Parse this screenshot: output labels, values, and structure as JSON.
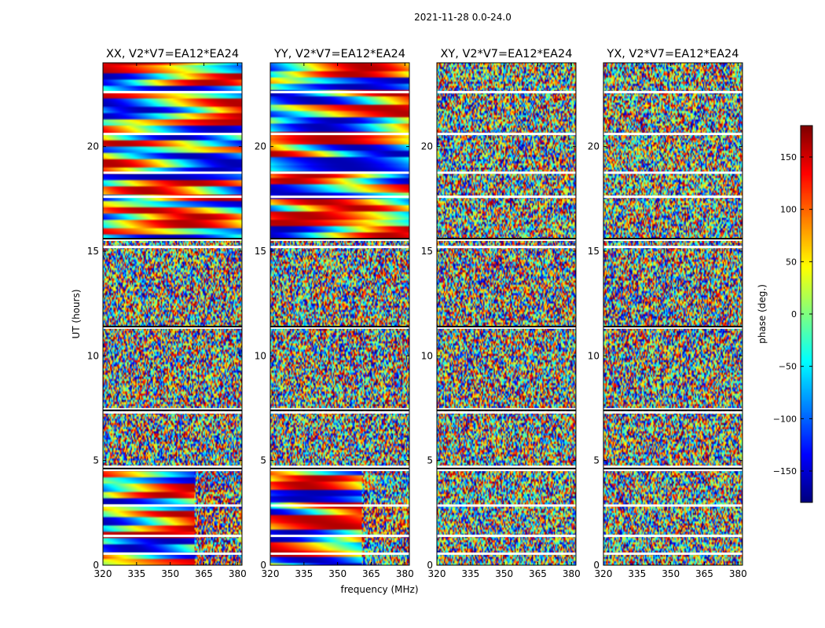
{
  "chart_data": {
    "type": "heatmap",
    "title": "2021-11-28 0.0-24.0",
    "xlabel": "frequency (MHz)",
    "ylabel": "UT (hours)",
    "xlim": [
      320,
      382
    ],
    "ylim": [
      0,
      24
    ],
    "x_ticks": [
      320,
      335,
      350,
      365,
      380
    ],
    "x_tick_labels": [
      "320",
      "335",
      "350",
      "365",
      "380"
    ],
    "y_ticks": [
      0,
      5,
      10,
      15,
      20
    ],
    "y_tick_labels": [
      "0",
      "5",
      "10",
      "15",
      "20"
    ],
    "colormap": "jet",
    "colorbar": {
      "label": "phase (deg.)",
      "range": [
        -180,
        180
      ],
      "ticks": [
        150,
        100,
        50,
        0,
        -50,
        -100,
        -150
      ],
      "tick_labels": [
        "150",
        "100",
        "50",
        "0",
        "−50",
        "−100",
        "−150"
      ]
    },
    "panels": [
      {
        "title": "XX, V2*V7=EA12*EA24",
        "pol": "XX"
      },
      {
        "title": "YY, V2*V7=EA12*EA24",
        "pol": "YY"
      },
      {
        "title": "XY, V2*V7=EA12*EA24",
        "pol": "XY"
      },
      {
        "title": "YX, V2*V7=EA12*EA24",
        "pol": "YX"
      }
    ],
    "noisy_intervals_hours": [
      [
        4.6,
        15.6
      ]
    ],
    "flag_lines_hours": [
      0.55,
      1.4,
      2.85,
      4.55,
      4.7,
      7.3,
      7.45,
      11.35,
      15.2,
      15.55,
      17.6,
      18.75,
      20.6,
      22.6
    ]
  }
}
